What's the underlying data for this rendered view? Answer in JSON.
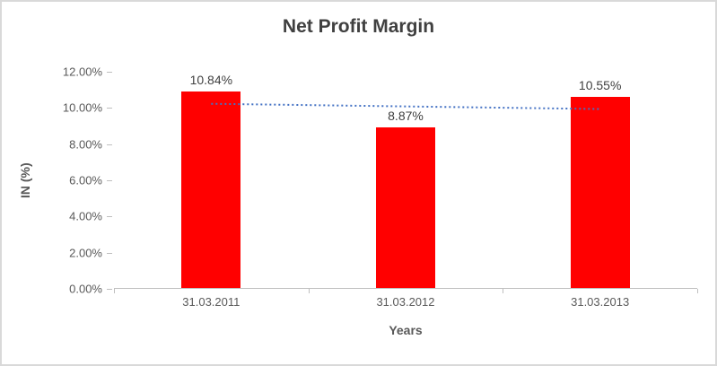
{
  "chart_data": {
    "type": "bar",
    "title": "Net Profit Margin",
    "xlabel": "Years",
    "ylabel": "IN (%)",
    "categories": [
      "31.03.2011",
      "31.03.2012",
      "31.03.2013"
    ],
    "values": [
      10.84,
      8.87,
      10.55
    ],
    "data_labels": [
      "10.84%",
      "8.87%",
      "10.55%"
    ],
    "ylim": [
      0,
      12
    ],
    "ytick_step": 2,
    "yticks": [
      "0.00%",
      "2.00%",
      "4.00%",
      "6.00%",
      "8.00%",
      "10.00%",
      "12.00%"
    ],
    "grid": false,
    "legend": "none",
    "trendline": {
      "type": "linear",
      "style": "dotted",
      "start_value": 10.23,
      "end_value": 9.94
    },
    "colors": {
      "bar": "#FF0000",
      "trendline": "#4472C4",
      "axis": "#BFBFBF",
      "border": "#D9D9D9",
      "title_text": "#404040",
      "axis_text": "#595959"
    }
  }
}
